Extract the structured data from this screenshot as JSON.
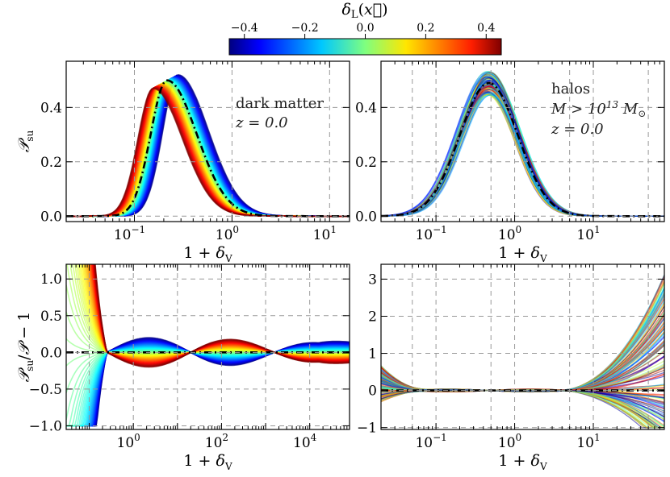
{
  "colorbar": {
    "label": "δ_L(x⃗)",
    "ticks": [
      "−0.4",
      "−0.2",
      "0.0",
      "0.2",
      "0.4"
    ],
    "range": [
      -0.45,
      0.45
    ],
    "colormap": "jet"
  },
  "chart_data": [
    {
      "panel": "top-left",
      "type": "line",
      "xscale": "log",
      "xlim": [
        0.02,
        16
      ],
      "ylim": [
        -0.02,
        0.57
      ],
      "xlabel": "1 + δ_V",
      "ylabel": "P_su",
      "xtick_labels": [
        "10^-1",
        "10^0",
        "10^1"
      ],
      "ytick_labels": [
        "0.0",
        "0.2",
        "0.4"
      ],
      "annotation": [
        "dark matter",
        "z = 0.0"
      ],
      "series": [
        {
          "delta_L": -0.4,
          "peak_x": 0.28,
          "peak_y": 0.52
        },
        {
          "delta_L": 0.0,
          "peak_x": 0.22,
          "peak_y": 0.5,
          "style": "dash-dot"
        },
        {
          "delta_L": 0.4,
          "peak_x": 0.155,
          "peak_y": 0.47
        }
      ]
    },
    {
      "panel": "top-right",
      "type": "line",
      "xscale": "log",
      "xlim": [
        0.02,
        80
      ],
      "ylim": [
        -0.02,
        0.57
      ],
      "xlabel": "1 + δ_V",
      "ylabel": "",
      "xtick_labels": [
        "10^-1",
        "10^0",
        "10^1"
      ],
      "ytick_labels": [
        "0.0",
        "0.2",
        "0.4"
      ],
      "annotation": [
        "halos",
        "M > 10^13 M⊙",
        "z = 0.0"
      ],
      "series": [
        {
          "delta_L": 0.0,
          "peak_x": 0.47,
          "peak_y": 0.49,
          "style": "dash-dot"
        }
      ]
    },
    {
      "panel": "bottom-left",
      "type": "line",
      "xscale": "log",
      "xlim": [
        0.03,
        80000
      ],
      "ylim": [
        -1.05,
        1.2
      ],
      "xlabel": "1 + δ_V",
      "ylabel": "P_su / P − 1",
      "xtick_labels": [
        "10^0",
        "10^2",
        "10^4"
      ],
      "ytick_labels": [
        "−1.0",
        "−0.5",
        "0.0",
        "0.5",
        "1.0"
      ],
      "series": [
        {
          "delta_L": 0.0,
          "values": "zero",
          "style": "dash-dot"
        }
      ]
    },
    {
      "panel": "bottom-right",
      "type": "line",
      "xscale": "log",
      "xlim": [
        0.02,
        80
      ],
      "ylim": [
        -1.05,
        3.4
      ],
      "xlabel": "1 + δ_V",
      "ylabel": "",
      "xtick_labels": [
        "10^-1",
        "10^0",
        "10^1"
      ],
      "ytick_labels": [
        "−1",
        "0",
        "1",
        "2",
        "3"
      ],
      "series": [
        {
          "delta_L": 0.0,
          "values": "zero",
          "style": "dash-dot"
        }
      ]
    }
  ]
}
